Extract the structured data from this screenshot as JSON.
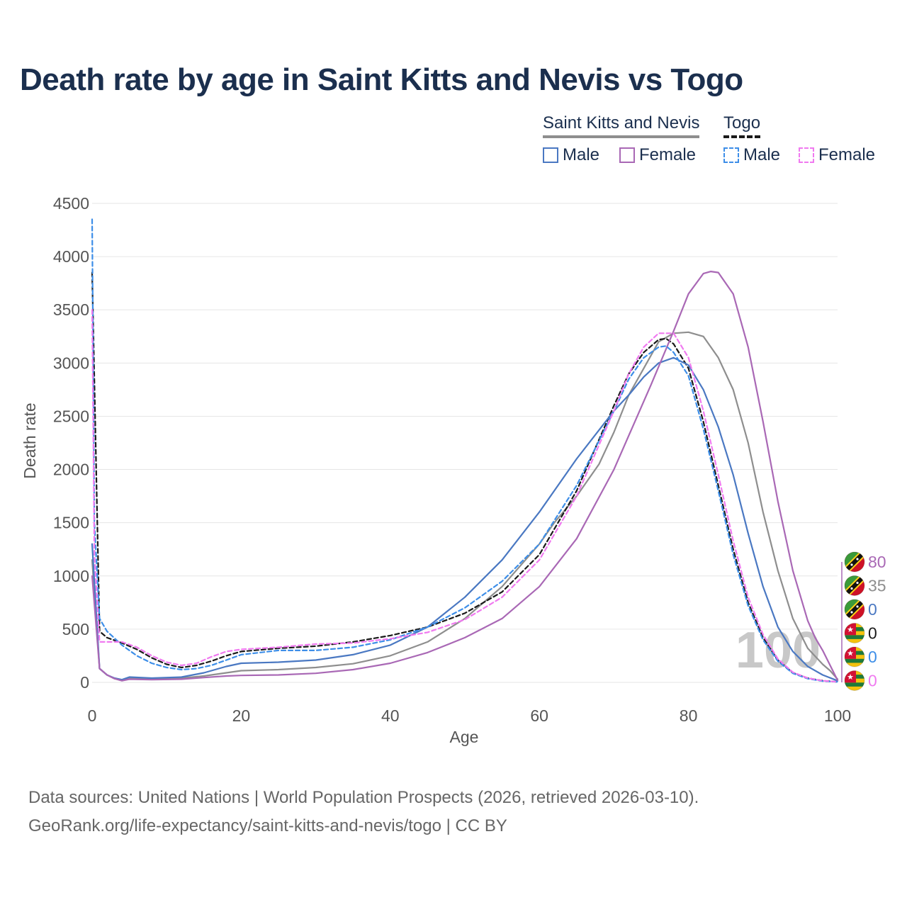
{
  "title": "Death rate by age in Saint Kitts and Nevis vs Togo",
  "legend": {
    "countries": [
      "Saint Kitts and Nevis",
      "Togo"
    ],
    "items": [
      {
        "country": "Saint Kitts and Nevis",
        "label": "Male",
        "color": "#4a78c2",
        "dashed": false
      },
      {
        "country": "Saint Kitts and Nevis",
        "label": "Female",
        "color": "#a968b5",
        "dashed": false
      },
      {
        "country": "Togo",
        "label": "Male",
        "color": "#3d8ee8",
        "dashed": true
      },
      {
        "country": "Togo",
        "label": "Female",
        "color": "#f07af0",
        "dashed": true
      }
    ]
  },
  "source_line1": "Data sources: United Nations | World Population Prospects (2026, retrieved 2026-03-10).",
  "source_line2": "GeoRank.org/life-expectancy/saint-kitts-and-nevis/togo | CC BY",
  "chart_data": {
    "type": "line",
    "xlabel": "Age",
    "ylabel": "Death rate",
    "xlim": [
      0,
      100
    ],
    "ylim": [
      0,
      4500
    ],
    "xticks": [
      0,
      20,
      40,
      60,
      80,
      100
    ],
    "yticks": [
      0,
      500,
      1000,
      1500,
      2000,
      2500,
      3000,
      3500,
      4000,
      4500
    ],
    "watermark": "100",
    "series": [
      {
        "name": "Saint Kitts and Nevis total",
        "color": "#8e8e8e",
        "dashed": false,
        "width": 2.2,
        "x": [
          0,
          1,
          2,
          3,
          4,
          5,
          8,
          12,
          15,
          18,
          20,
          25,
          30,
          35,
          40,
          45,
          50,
          55,
          60,
          62,
          65,
          68,
          70,
          72,
          74,
          76,
          78,
          80,
          82,
          84,
          86,
          88,
          90,
          92,
          94,
          96,
          98,
          99,
          100
        ],
        "y": [
          1150,
          130,
          70,
          35,
          20,
          40,
          35,
          40,
          60,
          90,
          110,
          120,
          140,
          175,
          250,
          380,
          600,
          900,
          1300,
          1500,
          1750,
          2050,
          2350,
          2700,
          2950,
          3200,
          3280,
          3290,
          3250,
          3050,
          2750,
          2250,
          1600,
          1050,
          600,
          320,
          170,
          110,
          30
        ]
      },
      {
        "name": "Togo total",
        "color": "#1a1a1a",
        "dashed": true,
        "width": 2.2,
        "x": [
          0,
          1,
          2,
          4,
          6,
          8,
          10,
          12,
          14,
          16,
          18,
          20,
          25,
          30,
          35,
          40,
          45,
          50,
          55,
          60,
          65,
          70,
          72,
          74,
          76,
          77,
          78,
          80,
          82,
          84,
          86,
          88,
          90,
          92,
          94,
          96,
          98,
          100
        ],
        "y": [
          3850,
          480,
          420,
          370,
          310,
          230,
          170,
          140,
          160,
          200,
          250,
          290,
          320,
          340,
          380,
          440,
          520,
          650,
          850,
          1200,
          1800,
          2600,
          2900,
          3100,
          3220,
          3230,
          3180,
          2950,
          2450,
          1850,
          1250,
          750,
          420,
          210,
          90,
          40,
          15,
          5
        ]
      },
      {
        "name": "Saint Kitts and Nevis Male",
        "color": "#4a78c2",
        "dashed": false,
        "width": 2.2,
        "x": [
          0,
          1,
          2,
          3,
          4,
          5,
          8,
          12,
          15,
          18,
          20,
          25,
          30,
          35,
          40,
          45,
          50,
          55,
          60,
          65,
          70,
          72,
          74,
          76,
          78,
          80,
          82,
          84,
          86,
          88,
          90,
          92,
          94,
          96,
          98,
          100
        ],
        "y": [
          1300,
          130,
          70,
          40,
          25,
          50,
          40,
          50,
          90,
          150,
          180,
          190,
          210,
          260,
          350,
          520,
          800,
          1150,
          1600,
          2100,
          2550,
          2700,
          2870,
          3000,
          3050,
          2980,
          2750,
          2400,
          1950,
          1400,
          900,
          520,
          290,
          150,
          70,
          15
        ]
      },
      {
        "name": "Saint Kitts and Nevis Female",
        "color": "#a968b5",
        "dashed": false,
        "width": 2.2,
        "x": [
          0,
          1,
          2,
          3,
          4,
          5,
          8,
          12,
          15,
          18,
          20,
          25,
          30,
          35,
          40,
          45,
          50,
          55,
          60,
          65,
          70,
          75,
          78,
          80,
          82,
          83,
          84,
          86,
          88,
          90,
          92,
          94,
          96,
          97,
          98,
          100
        ],
        "y": [
          1000,
          130,
          70,
          35,
          15,
          30,
          25,
          30,
          45,
          60,
          65,
          70,
          85,
          120,
          180,
          280,
          420,
          600,
          900,
          1350,
          2000,
          2800,
          3300,
          3650,
          3840,
          3860,
          3850,
          3650,
          3150,
          2450,
          1700,
          1050,
          580,
          420,
          300,
          20
        ]
      },
      {
        "name": "Togo Male",
        "color": "#3d8ee8",
        "dashed": true,
        "width": 2.2,
        "x": [
          0,
          0.3,
          1,
          2,
          4,
          6,
          8,
          10,
          12,
          14,
          16,
          18,
          20,
          25,
          30,
          35,
          40,
          45,
          50,
          55,
          60,
          65,
          70,
          72,
          74,
          76,
          77,
          78,
          80,
          82,
          84,
          86,
          88,
          90,
          92,
          94,
          96,
          98,
          100
        ],
        "y": [
          4350,
          1500,
          600,
          480,
          350,
          250,
          180,
          140,
          120,
          130,
          160,
          210,
          260,
          300,
          300,
          330,
          400,
          520,
          700,
          950,
          1300,
          1850,
          2550,
          2850,
          3050,
          3150,
          3160,
          3100,
          2880,
          2380,
          1800,
          1200,
          720,
          400,
          200,
          85,
          35,
          12,
          5
        ]
      },
      {
        "name": "Togo Female",
        "color": "#f07af0",
        "dashed": true,
        "width": 2.2,
        "x": [
          0,
          0.3,
          1,
          2,
          4,
          6,
          8,
          10,
          12,
          14,
          16,
          18,
          20,
          25,
          30,
          35,
          40,
          45,
          50,
          55,
          60,
          65,
          70,
          72,
          74,
          76,
          78,
          80,
          82,
          84,
          86,
          88,
          90,
          92,
          94,
          96,
          98,
          100
        ],
        "y": [
          3500,
          1200,
          380,
          380,
          380,
          330,
          250,
          190,
          160,
          180,
          240,
          290,
          310,
          330,
          360,
          370,
          410,
          470,
          590,
          800,
          1150,
          1750,
          2550,
          2900,
          3150,
          3280,
          3280,
          3050,
          2550,
          1950,
          1330,
          800,
          450,
          220,
          95,
          40,
          15,
          5
        ]
      }
    ],
    "end_labels": [
      {
        "value": "80",
        "color": "#a968b5",
        "flag": "skn"
      },
      {
        "value": "35",
        "color": "#8e8e8e",
        "flag": "skn"
      },
      {
        "value": "0",
        "color": "#4a78c2",
        "flag": "skn"
      },
      {
        "value": "0",
        "color": "#1a1a1a",
        "flag": "tgo"
      },
      {
        "value": "0",
        "color": "#3d8ee8",
        "flag": "tgo"
      },
      {
        "value": "0",
        "color": "#f07af0",
        "flag": "tgo"
      }
    ]
  }
}
